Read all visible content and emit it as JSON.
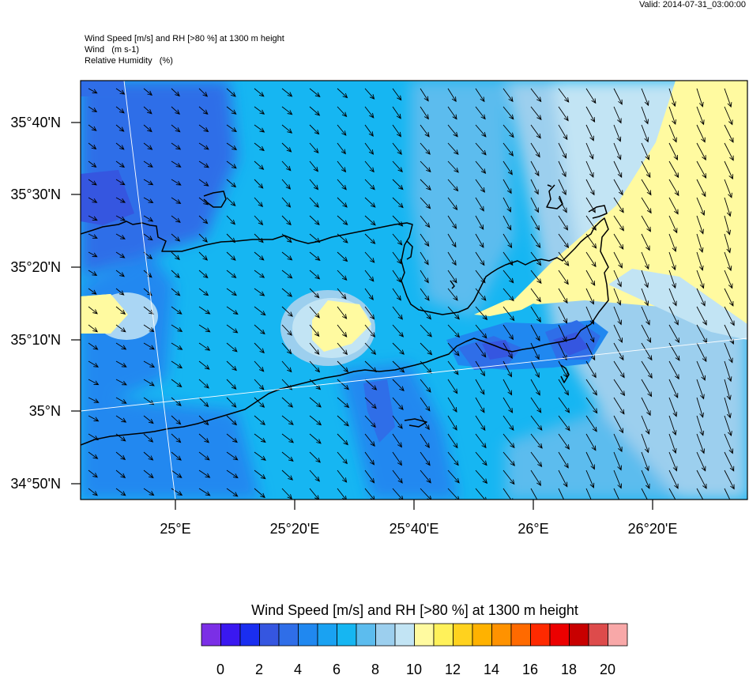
{
  "header": {
    "valid": "Valid: 2014-07-31_03:00:00",
    "lines": [
      "Wind Speed [m/s] and RH [>80 %] at 1300 m height",
      "Wind   (m s-1)",
      "Relative Humidity   (%)"
    ]
  },
  "map": {
    "lat_labels": [
      "35°40'N",
      "35°30'N",
      "35°20'N",
      "35°10'N",
      "35°N",
      "34°50'N"
    ],
    "lon_labels": [
      "25°E",
      "25°20'E",
      "25°40'E",
      "26°E",
      "26°20'E"
    ]
  },
  "colorbar": {
    "title": "Wind Speed [m/s] and RH [>80 %] at 1300 m height",
    "colors": [
      "#7b2fe6",
      "#3a18f0",
      "#1a2ef0",
      "#3556e0",
      "#2f6ee8",
      "#2088f0",
      "#1aa2f2",
      "#16b6f2",
      "#5cbcee",
      "#9ccfee",
      "#c2e4f4",
      "#fffaa0",
      "#fff15a",
      "#ffd21e",
      "#ffb200",
      "#ff9200",
      "#ff6a00",
      "#ff2a00",
      "#ec0000",
      "#c80000",
      "#dd4b4b",
      "#f8a8a8"
    ],
    "labels": [
      "0",
      "2",
      "4",
      "6",
      "8",
      "10",
      "12",
      "14",
      "16",
      "18",
      "20"
    ]
  }
}
